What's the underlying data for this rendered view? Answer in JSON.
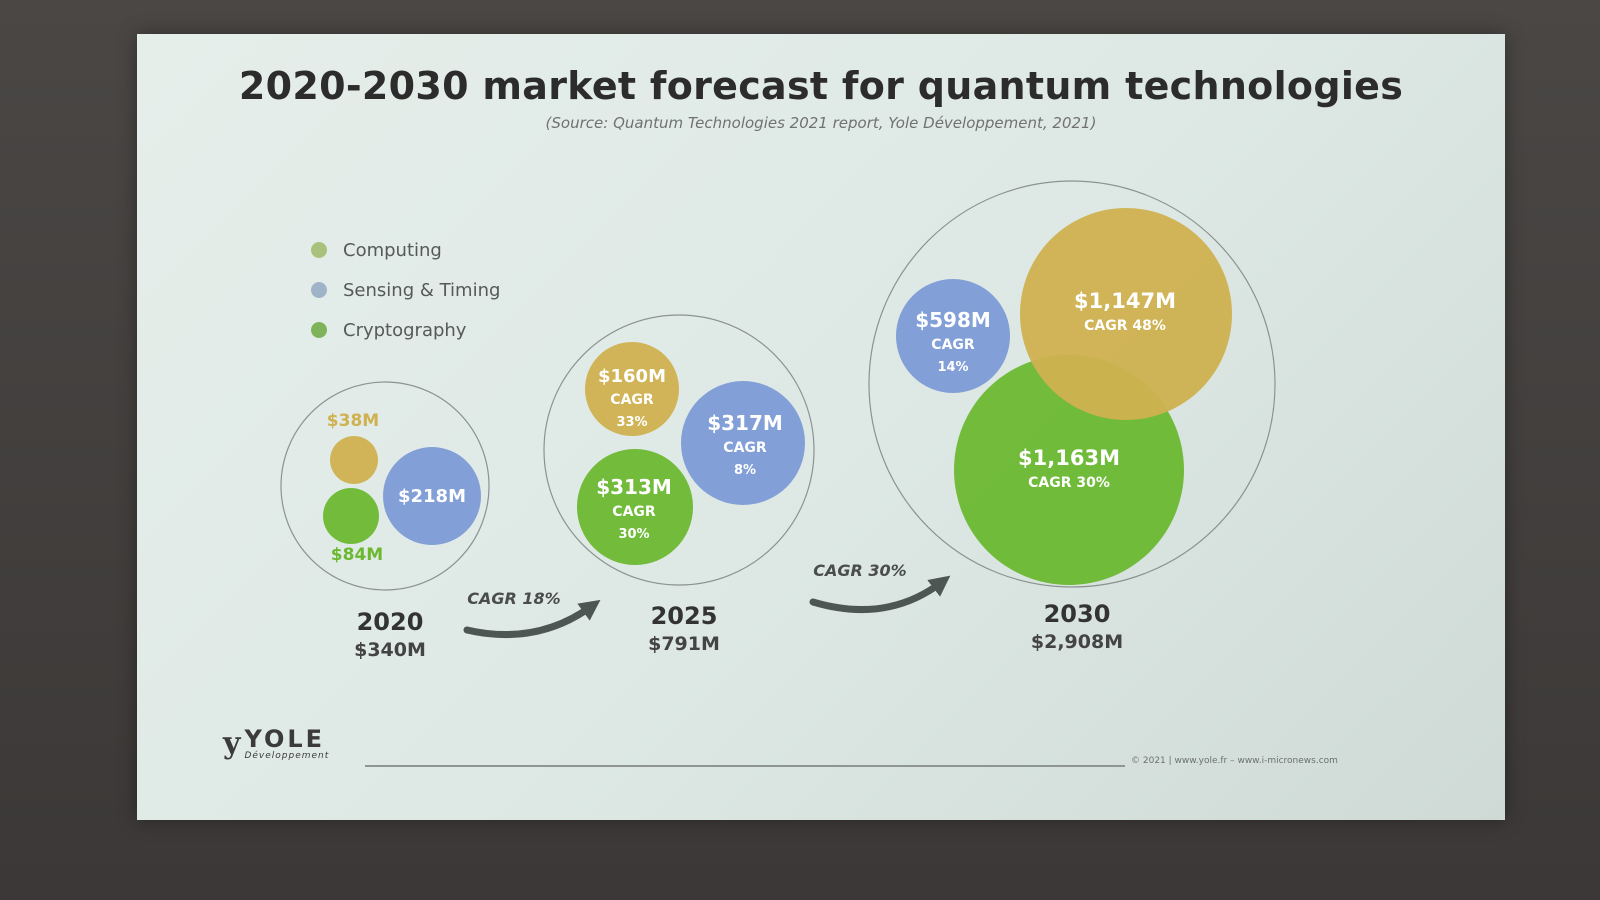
{
  "slide": {
    "title": "2020-2030 market forecast for quantum technologies",
    "subtitle": "(Source: Quantum Technologies 2021 report, Yole Développement, 2021)",
    "footer": "© 2021 | www.yole.fr – www.i-micronews.com",
    "logo": {
      "name": "YOLE",
      "sub": "Développement"
    }
  },
  "legend": [
    {
      "label": "Computing",
      "color": "#a8c27d"
    },
    {
      "label": "Sensing & Timing",
      "color": "#9fb4c9"
    },
    {
      "label": "Cryptography",
      "color": "#7fb35a"
    }
  ],
  "colors": {
    "computing": "#cfb14f",
    "sensing": "#7c9bd6",
    "cryptography": "#6cb831"
  },
  "chart_data": {
    "type": "bubble",
    "title": "2020-2030 market forecast for quantum technologies",
    "series_keys": [
      "computing",
      "sensing",
      "cryptography"
    ],
    "years": [
      {
        "year": "2020",
        "total": "$340M",
        "segments": {
          "computing": {
            "value": 38,
            "label": "$38M",
            "cagr": ""
          },
          "sensing": {
            "value": 218,
            "label": "$218M",
            "cagr": ""
          },
          "cryptography": {
            "value": 84,
            "label": "$84M",
            "cagr": ""
          }
        }
      },
      {
        "year": "2025",
        "total": "$791M",
        "segments": {
          "computing": {
            "value": 160,
            "label": "$160M",
            "cagr": "CAGR 33%"
          },
          "sensing": {
            "value": 317,
            "label": "$317M",
            "cagr": "CAGR 8%"
          },
          "cryptography": {
            "value": 313,
            "label": "$313M",
            "cagr": "CAGR 30%"
          }
        }
      },
      {
        "year": "2030",
        "total": "$2,908M",
        "segments": {
          "computing": {
            "value": 1147,
            "label": "$1,147M",
            "cagr": "CAGR 48%"
          },
          "sensing": {
            "value": 598,
            "label": "$598M",
            "cagr": "CAGR 14%"
          },
          "cryptography": {
            "value": 1163,
            "label": "$1,163M",
            "cagr": "CAGR 30%"
          }
        }
      }
    ],
    "transitions": [
      {
        "from": "2020",
        "to": "2025",
        "label": "CAGR 18%"
      },
      {
        "from": "2025",
        "to": "2030",
        "label": "CAGR 30%"
      }
    ]
  }
}
